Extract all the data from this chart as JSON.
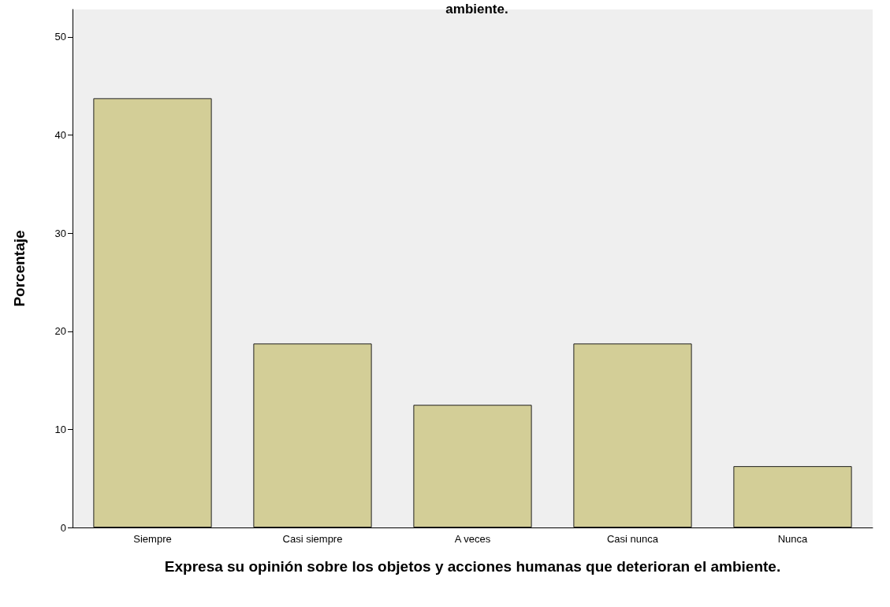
{
  "chart_data": {
    "type": "bar",
    "title": "ambiente.",
    "xlabel": "Expresa su opinión sobre los objetos y acciones humanas que deterioran el ambiente.",
    "ylabel": "Porcentaje",
    "categories": [
      "Siempre",
      "Casi siempre",
      "A veces",
      "Casi nunca",
      "Nunca"
    ],
    "values": [
      43.75,
      18.75,
      12.5,
      18.75,
      6.25
    ],
    "color": "#d3ce97",
    "ylim": [
      0,
      52.8
    ],
    "yticks": [
      0,
      10,
      20,
      30,
      40,
      50
    ],
    "grid": false
  }
}
